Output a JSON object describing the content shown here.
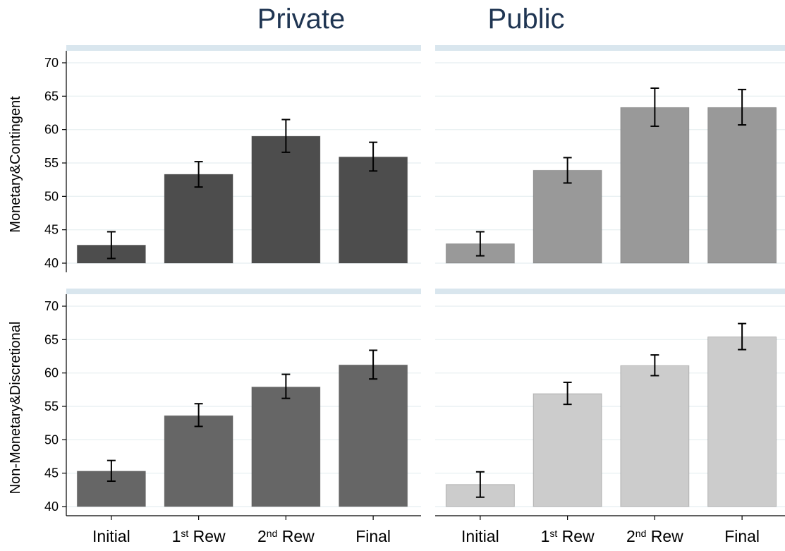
{
  "chart_data": {
    "type": "bar",
    "layout": "2x2 facet grid",
    "columns": [
      "Private",
      "Public"
    ],
    "rows": [
      "Monetary&Contingent",
      "Non-Monetary&Discretional"
    ],
    "categories": [
      {
        "base": "Initial",
        "sup": "",
        "rest": ""
      },
      {
        "base": "1",
        "sup": "st",
        "rest": " Rew"
      },
      {
        "base": "2",
        "sup": "nd",
        "rest": " Rew"
      },
      {
        "base": "Final",
        "sup": "",
        "rest": ""
      }
    ],
    "y_ticks": [
      40,
      45,
      50,
      55,
      60,
      65,
      70
    ],
    "ylim": [
      40,
      72
    ],
    "grid": true,
    "error_bars": true,
    "panels": [
      {
        "row": "Monetary&Contingent",
        "column": "Private",
        "color": "#4d4d4d",
        "values": [
          42.7,
          53.3,
          59.0,
          55.9
        ],
        "ci_low": [
          40.7,
          51.4,
          56.6,
          53.8
        ],
        "ci_high": [
          44.7,
          55.2,
          61.5,
          58.1
        ]
      },
      {
        "row": "Monetary&Contingent",
        "column": "Public",
        "color": "#999999",
        "values": [
          42.9,
          53.9,
          63.3,
          63.3
        ],
        "ci_low": [
          41.1,
          52.0,
          60.5,
          60.7
        ],
        "ci_high": [
          44.7,
          55.8,
          66.2,
          66.0
        ]
      },
      {
        "row": "Non-Monetary&Discretional",
        "column": "Private",
        "color": "#666666",
        "values": [
          45.3,
          53.6,
          57.9,
          61.2
        ],
        "ci_low": [
          43.8,
          52.0,
          56.2,
          59.1
        ],
        "ci_high": [
          46.9,
          55.4,
          59.8,
          63.4
        ]
      },
      {
        "row": "Non-Monetary&Discretional",
        "column": "Public",
        "color": "#cccccc",
        "values": [
          43.3,
          56.9,
          61.1,
          65.4
        ],
        "ci_low": [
          41.4,
          55.3,
          59.6,
          63.5
        ],
        "ci_high": [
          45.2,
          58.6,
          62.7,
          67.4
        ]
      }
    ]
  }
}
